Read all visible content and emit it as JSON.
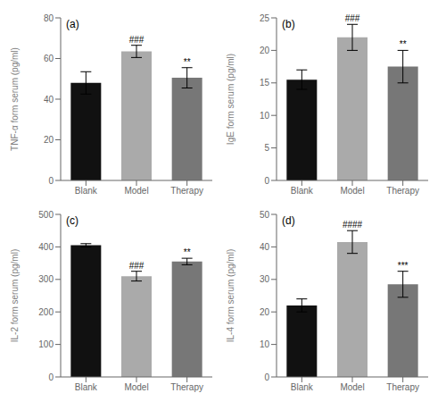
{
  "chart_data": [
    {
      "type": "bar",
      "title": "(a)",
      "ylabel": "TNF-α form serum (pg/ml)",
      "categories": [
        "Blank",
        "Model",
        "Therapy"
      ],
      "values": [
        48,
        63.5,
        50.5
      ],
      "errors": [
        5.5,
        3.0,
        5.0
      ],
      "ylim": [
        0,
        80
      ],
      "yticks": [
        0,
        20,
        40,
        60,
        80
      ],
      "colors": [
        "#111111",
        "#aaaaaa",
        "#777777"
      ],
      "annotations": [
        {
          "category": "Model",
          "text": "###"
        },
        {
          "category": "Therapy",
          "text": "**"
        }
      ]
    },
    {
      "type": "bar",
      "title": "(b)",
      "ylabel": "IgE form serum (pg/ml)",
      "categories": [
        "Blank",
        "Model",
        "Therapy"
      ],
      "values": [
        15.5,
        22.0,
        17.5
      ],
      "errors": [
        1.5,
        2.0,
        2.5
      ],
      "ylim": [
        0,
        25
      ],
      "yticks": [
        0,
        5,
        10,
        15,
        20,
        25
      ],
      "colors": [
        "#111111",
        "#aaaaaa",
        "#777777"
      ],
      "annotations": [
        {
          "category": "Model",
          "text": "###"
        },
        {
          "category": "Therapy",
          "text": "**"
        }
      ]
    },
    {
      "type": "bar",
      "title": "(c)",
      "ylabel": "IL-2 form serum (pg/ml)",
      "categories": [
        "Blank",
        "Model",
        "Therapy"
      ],
      "values": [
        405,
        310,
        355
      ],
      "errors": [
        5,
        15,
        10
      ],
      "ylim": [
        0,
        500
      ],
      "yticks": [
        0,
        100,
        200,
        300,
        400,
        500
      ],
      "colors": [
        "#111111",
        "#aaaaaa",
        "#777777"
      ],
      "annotations": [
        {
          "category": "Model",
          "text": "###"
        },
        {
          "category": "Therapy",
          "text": "**"
        }
      ]
    },
    {
      "type": "bar",
      "title": "(d)",
      "ylabel": "IL-4 form serum (pg/ml)",
      "categories": [
        "Blank",
        "Model",
        "Therapy"
      ],
      "values": [
        22,
        41.5,
        28.5
      ],
      "errors": [
        2.0,
        3.5,
        4.0
      ],
      "ylim": [
        0,
        50
      ],
      "yticks": [
        0,
        10,
        20,
        30,
        40,
        50
      ],
      "colors": [
        "#111111",
        "#aaaaaa",
        "#777777"
      ],
      "annotations": [
        {
          "category": "Model",
          "text": "####"
        },
        {
          "category": "Therapy",
          "text": "***"
        }
      ]
    }
  ]
}
